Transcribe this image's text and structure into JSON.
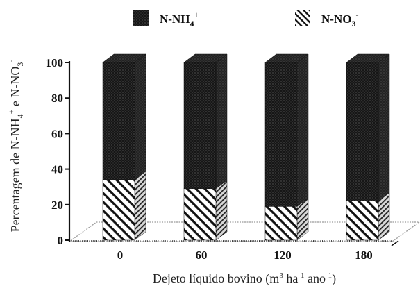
{
  "chart_data": {
    "type": "bar",
    "stacked": true,
    "style": "3d",
    "categories": [
      "0",
      "60",
      "120",
      "180"
    ],
    "series": [
      {
        "name": "N-NO3-",
        "legend_main": "N-NO",
        "legend_sub": "3",
        "legend_sup": "-",
        "pattern": "diagonal-hatch",
        "values": [
          34,
          29,
          19,
          22
        ]
      },
      {
        "name": "N-NH4+",
        "legend_main": "N-NH",
        "legend_sub": "4",
        "legend_sup": "+",
        "pattern": "dense-dots",
        "values": [
          66,
          71,
          81,
          78
        ]
      }
    ],
    "legend_order": [
      1,
      0
    ],
    "y_ticks": [
      0,
      20,
      40,
      60,
      80,
      100
    ],
    "ylim": [
      0,
      100
    ],
    "ylabel": {
      "p1": "Percentagem de N-NH",
      "s1": "4",
      "sup1": "+",
      "p2": " e N-NO",
      "s2": "3",
      "sup2": "-"
    },
    "xlabel": {
      "p1": "Dejeto líquido bovino (m",
      "sup1": "3",
      "p2": " ha",
      "sup2": "-1",
      "p3": " ano",
      "sup3": "-1",
      "p4": ")"
    },
    "legend_position": "top",
    "grid": false,
    "colors": {
      "dark": "#1a1a1a",
      "light": "#ffffff",
      "floor": "#9a9a9a",
      "axis": "#111111"
    }
  }
}
